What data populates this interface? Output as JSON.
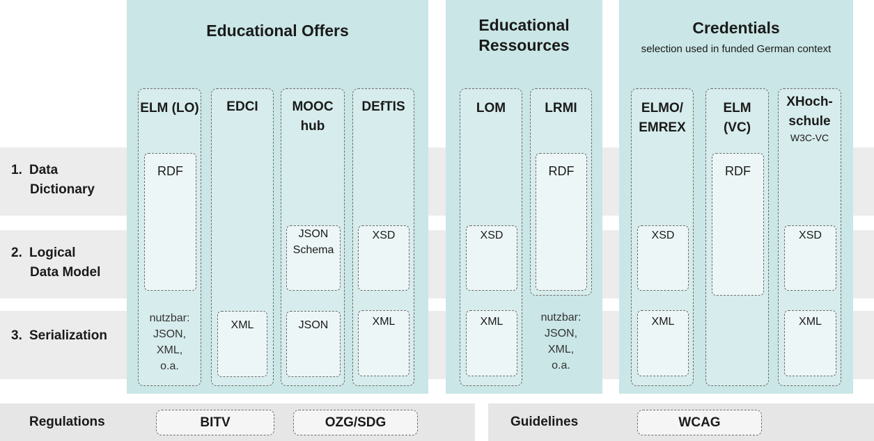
{
  "rows": [
    {
      "num": "1.",
      "line1": "Data",
      "line2": "Dictionary"
    },
    {
      "num": "2.",
      "line1": "Logical",
      "line2": "Data Model"
    },
    {
      "num": "3.",
      "line1": "Serialization",
      "line2": ""
    }
  ],
  "groups": {
    "educational_offers": {
      "title": "Educational Offers"
    },
    "educational_resources": {
      "title_line1": "Educational",
      "title_line2": "Ressources"
    },
    "credentials": {
      "title": "Credentials",
      "subtitle": "selection used in funded German context"
    }
  },
  "columns": {
    "elm_lo": {
      "title": "ELM (LO)",
      "rdf": "RDF",
      "serialization": [
        "nutzbar:",
        "JSON,",
        "XML,",
        "o.a."
      ]
    },
    "edci": {
      "title": "EDCI",
      "xml": "XML"
    },
    "mooc_hub": {
      "title_line1": "MOOC",
      "title_line2": "hub",
      "schema_line1": "JSON",
      "schema_line2": "Schema",
      "json": "JSON"
    },
    "deftis": {
      "title": "DEfTIS",
      "xsd": "XSD",
      "xml": "XML"
    },
    "lom": {
      "title": "LOM",
      "xsd": "XSD",
      "xml": "XML"
    },
    "lrmi": {
      "title": "LRMI",
      "rdf": "RDF",
      "serialization": [
        "nutzbar:",
        "JSON,",
        "XML,",
        "o.a."
      ]
    },
    "elmo_emrex": {
      "title_line1": "ELMO/",
      "title_line2": "EMREX",
      "xsd": "XSD",
      "xml": "XML"
    },
    "elm_vc": {
      "title_line1": "ELM",
      "title_line2": "(VC)",
      "rdf": "RDF"
    },
    "xhochschule": {
      "title_line1": "XHoch-",
      "title_line2": "schule",
      "subtitle": "W3C-VC",
      "xsd": "XSD",
      "xml": "XML"
    }
  },
  "footer": {
    "regulations_label": "Regulations",
    "regulations": [
      "BITV",
      "OZG/SDG"
    ],
    "guidelines_label": "Guidelines",
    "guidelines": [
      "WCAG"
    ]
  }
}
